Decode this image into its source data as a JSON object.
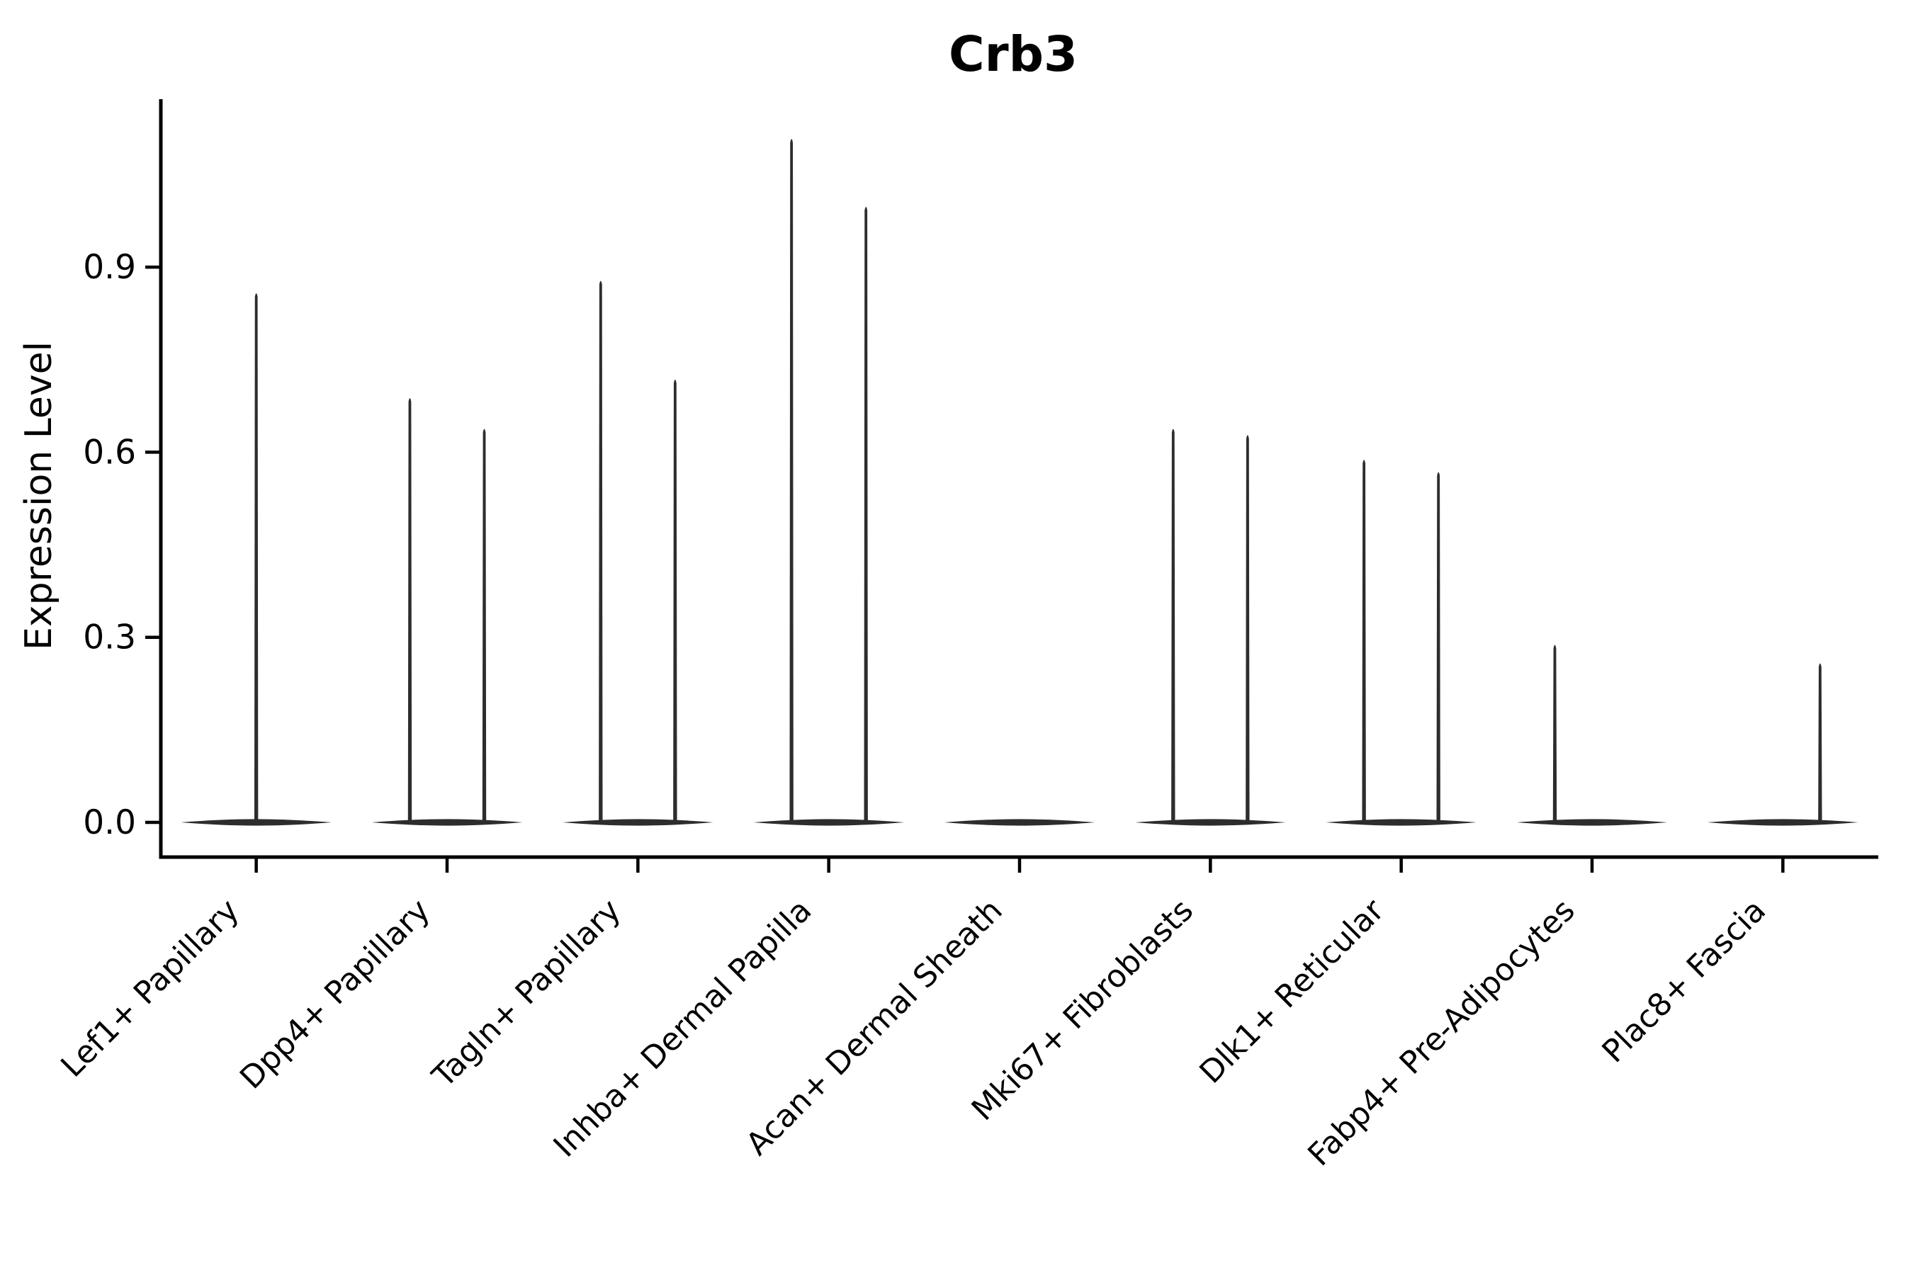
{
  "figure": {
    "title": "Crb3",
    "ylabel": "Expression Level"
  },
  "colors": {
    "background": "#ffffff",
    "axis": "#000000",
    "tick_text": "#000000",
    "violin": "#2d2d2d"
  },
  "chart_data": {
    "type": "violin",
    "title": "Crb3",
    "xlabel": "",
    "ylabel": "Expression Level",
    "ytick_labels": [
      "0.0",
      "0.3",
      "0.6",
      "0.9"
    ],
    "ytick_values": [
      0.0,
      0.3,
      0.6,
      0.9
    ],
    "ylim": [
      -0.06,
      1.17
    ],
    "grid": false,
    "legend_position": "none",
    "x_label_rotation_deg": 45,
    "categories": [
      "Lef1+ Papillary",
      "Dpp4+ Papillary",
      "Tagln+ Papillary",
      "Inhba+ Dermal Papilla",
      "Acan+ Dermal Sheath",
      "Mki67+ Fibroblasts",
      "Dlk1+ Reticular",
      "Fabp4+ Pre-Adipocytes",
      "Plac8+ Fascia"
    ],
    "violins": [
      {
        "category": "Lef1+ Papillary",
        "baseline_value": 0.0,
        "spikes": [
          {
            "position": "center",
            "peak_expression": 0.86
          }
        ]
      },
      {
        "category": "Dpp4+ Papillary",
        "baseline_value": 0.0,
        "spikes": [
          {
            "position": "left",
            "peak_expression": 0.69
          },
          {
            "position": "right",
            "peak_expression": 0.64
          }
        ]
      },
      {
        "category": "Tagln+ Papillary",
        "baseline_value": 0.0,
        "spikes": [
          {
            "position": "left",
            "peak_expression": 0.88
          },
          {
            "position": "right",
            "peak_expression": 0.72
          }
        ]
      },
      {
        "category": "Inhba+ Dermal Papilla",
        "baseline_value": 0.0,
        "spikes": [
          {
            "position": "left",
            "peak_expression": 1.11
          },
          {
            "position": "right",
            "peak_expression": 1.0
          }
        ]
      },
      {
        "category": "Acan+ Dermal Sheath",
        "baseline_value": 0.0,
        "spikes": []
      },
      {
        "category": "Mki67+ Fibroblasts",
        "baseline_value": 0.0,
        "spikes": [
          {
            "position": "left",
            "peak_expression": 0.64
          },
          {
            "position": "right",
            "peak_expression": 0.63
          }
        ]
      },
      {
        "category": "Dlk1+ Reticular",
        "baseline_value": 0.0,
        "spikes": [
          {
            "position": "left",
            "peak_expression": 0.59
          },
          {
            "position": "right",
            "peak_expression": 0.57
          }
        ]
      },
      {
        "category": "Fabp4+ Pre-Adipocytes",
        "baseline_value": 0.0,
        "spikes": [
          {
            "position": "left",
            "peak_expression": 0.29
          }
        ]
      },
      {
        "category": "Plac8+ Fascia",
        "baseline_value": 0.0,
        "spikes": [
          {
            "position": "right",
            "peak_expression": 0.26
          }
        ]
      }
    ]
  }
}
